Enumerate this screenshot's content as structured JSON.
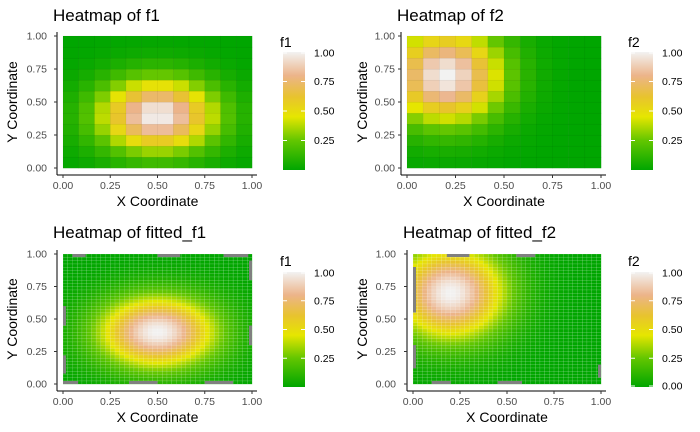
{
  "chart_data": [
    {
      "type": "heatmap",
      "function": "f1",
      "title": "Heatmap of f1",
      "xlabel": "X Coordinate",
      "ylabel": "Y Coordinate",
      "xlim": [
        0,
        1
      ],
      "ylim": [
        0,
        1
      ],
      "x_ticks": [
        "0.00",
        "0.25",
        "0.50",
        "0.75",
        "1.00"
      ],
      "y_ticks": [
        "0.00",
        "0.25",
        "0.50",
        "0.75",
        "1.00"
      ],
      "grid_size": 12,
      "peak": {
        "x": 0.5,
        "y": 0.4,
        "value": 1.0
      },
      "legend": {
        "title": "f1",
        "position": "right",
        "ticks": [
          "0.25",
          "0.50",
          "0.75",
          "1.00"
        ]
      }
    },
    {
      "type": "heatmap",
      "function": "f2",
      "title": "Heatmap of f2",
      "xlabel": "X Coordinate",
      "ylabel": "Y Coordinate",
      "xlim": [
        0,
        1
      ],
      "ylim": [
        0,
        1
      ],
      "x_ticks": [
        "0.00",
        "0.25",
        "0.50",
        "0.75",
        "1.00"
      ],
      "y_ticks": [
        "0.00",
        "0.25",
        "0.50",
        "0.75",
        "1.00"
      ],
      "grid_size": 12,
      "peak": {
        "x": 0.2,
        "y": 0.7,
        "value": 1.0
      },
      "legend": {
        "title": "f2",
        "position": "right",
        "ticks": [
          "0.25",
          "0.50",
          "0.75",
          "1.00"
        ]
      }
    },
    {
      "type": "heatmap",
      "function": "f1",
      "title": "Heatmap of fitted_f1",
      "xlabel": "X Coordinate",
      "ylabel": "Y Coordinate",
      "xlim": [
        0,
        1
      ],
      "ylim": [
        0,
        1
      ],
      "x_ticks": [
        "0.00",
        "0.25",
        "0.50",
        "0.75",
        "1.00"
      ],
      "y_ticks": [
        "0.00",
        "0.25",
        "0.50",
        "0.75",
        "1.00"
      ],
      "grid_size": 40,
      "peak": {
        "x": 0.5,
        "y": 0.4,
        "value": 1.0
      },
      "legend": {
        "title": "f1",
        "position": "right",
        "ticks": [
          "0.25",
          "0.50",
          "0.75",
          "1.00"
        ]
      }
    },
    {
      "type": "heatmap",
      "function": "f2",
      "title": "Heatmap of fitted_f2",
      "xlabel": "X Coordinate",
      "ylabel": "Y Coordinate",
      "xlim": [
        0,
        1
      ],
      "ylim": [
        0,
        1
      ],
      "x_ticks": [
        "0.00",
        "0.25",
        "0.50",
        "0.75",
        "1.00"
      ],
      "y_ticks": [
        "0.00",
        "0.25",
        "0.50",
        "0.75",
        "1.00"
      ],
      "grid_size": 40,
      "peak": {
        "x": 0.2,
        "y": 0.7,
        "value": 1.0
      },
      "legend": {
        "title": "f2",
        "position": "right",
        "ticks": [
          "0.00",
          "0.25",
          "0.50",
          "0.75",
          "1.00"
        ]
      }
    }
  ],
  "colors": {
    "scale": [
      "#00A600",
      "#E6E600",
      "#EAB64E",
      "#EEB99F",
      "#F2F2F2"
    ],
    "axis": "#000000",
    "tick_text": "#4d4d4d",
    "fitted_gap": "#808080"
  }
}
